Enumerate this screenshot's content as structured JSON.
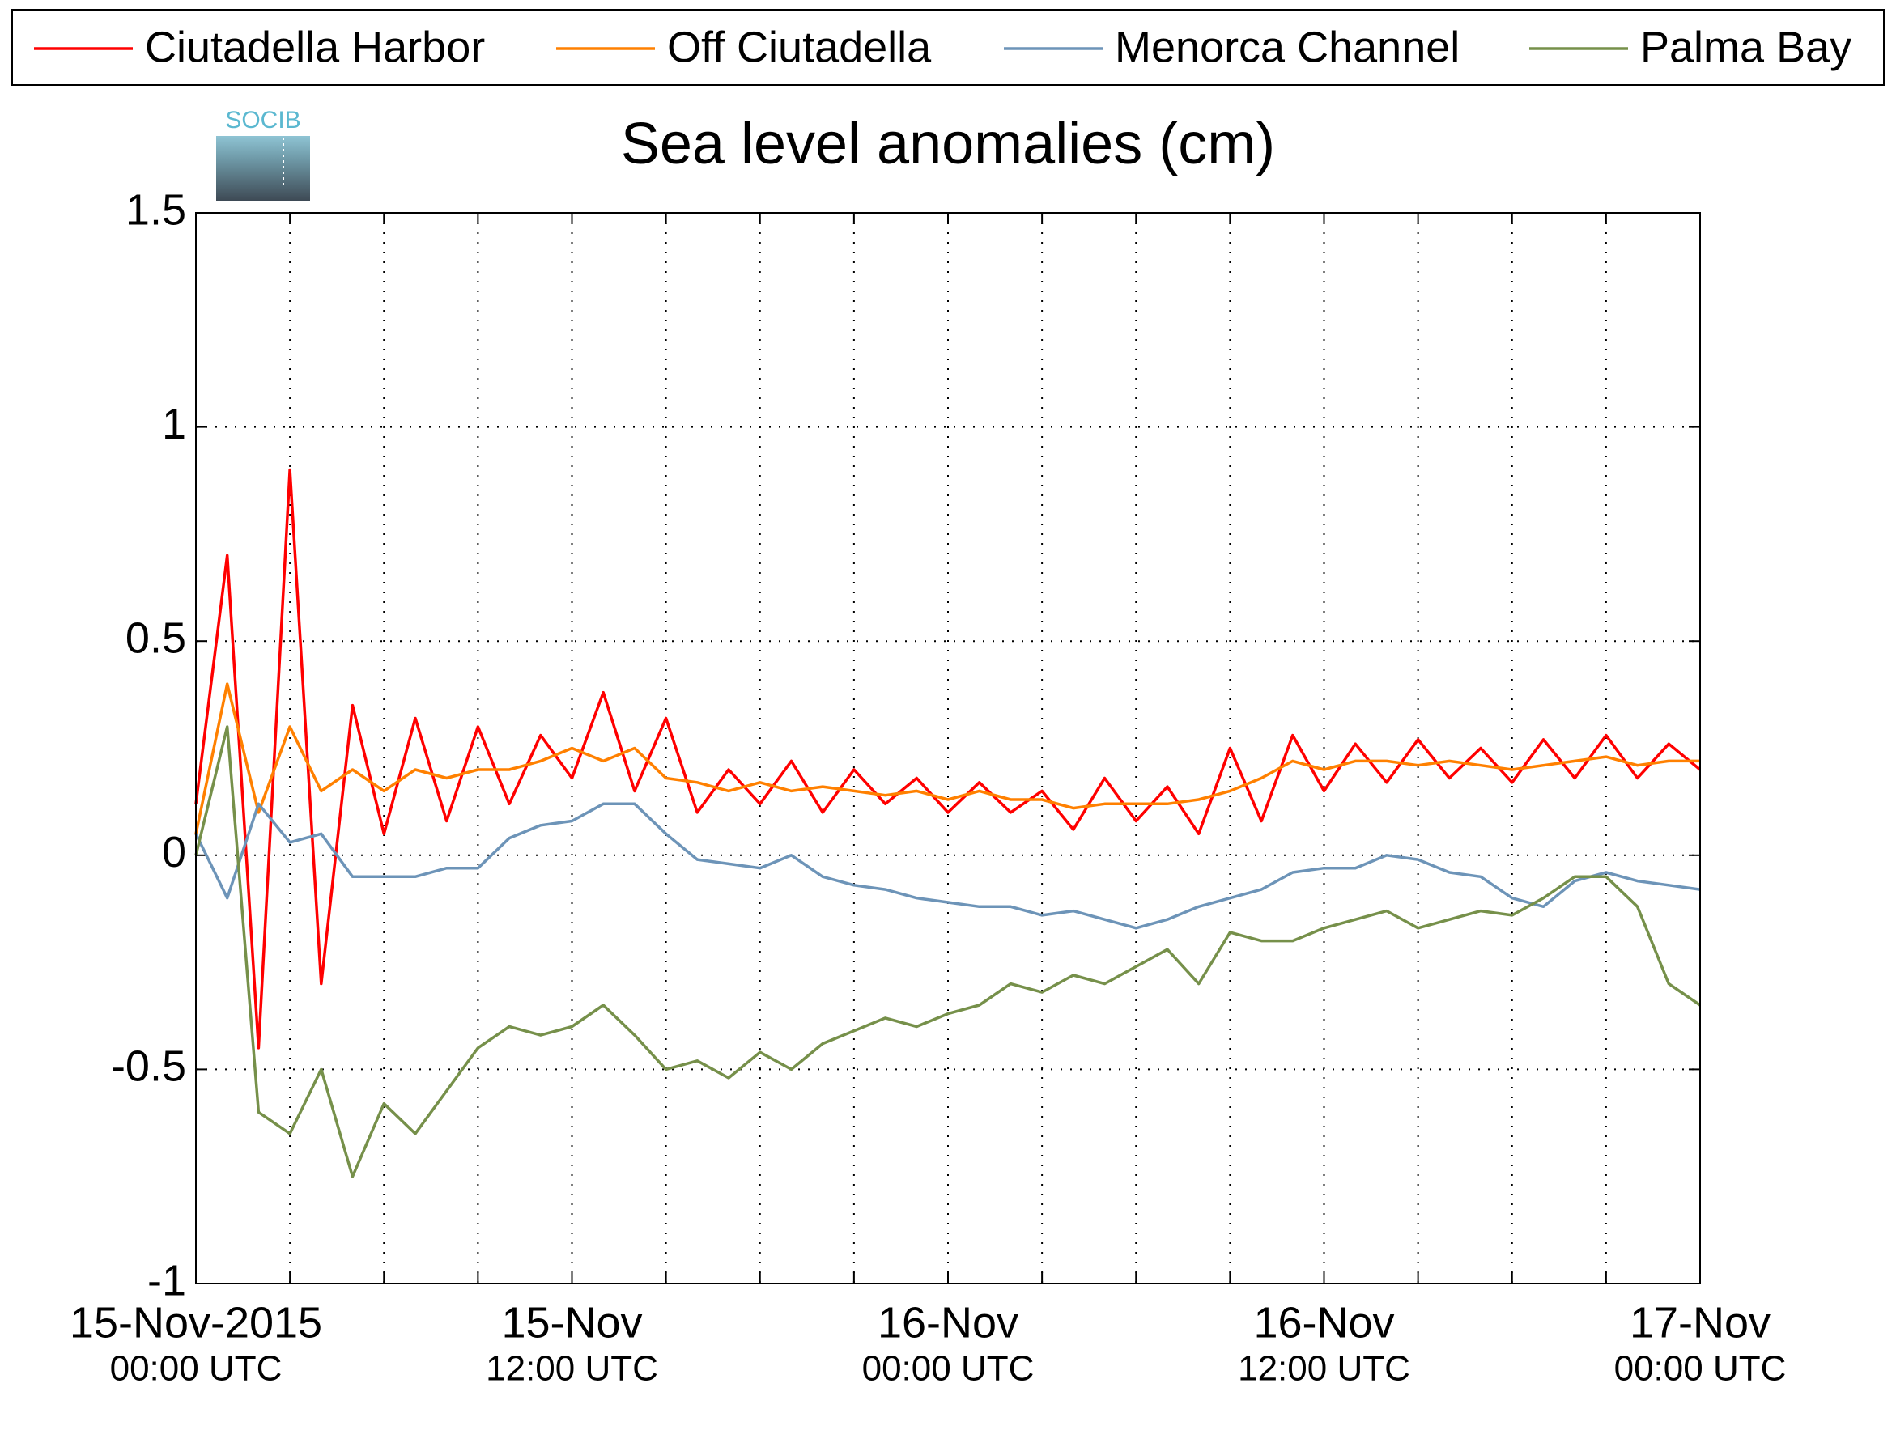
{
  "chart_data": {
    "type": "line",
    "title": "Sea level anomalies (cm)",
    "logo_text": "SOCIB",
    "x": [
      "2015-11-15T00:00",
      "2015-11-15T01:00",
      "2015-11-15T02:00",
      "2015-11-15T03:00",
      "2015-11-15T04:00",
      "2015-11-15T05:00",
      "2015-11-15T06:00",
      "2015-11-15T07:00",
      "2015-11-15T08:00",
      "2015-11-15T09:00",
      "2015-11-15T10:00",
      "2015-11-15T11:00",
      "2015-11-15T12:00",
      "2015-11-15T13:00",
      "2015-11-15T14:00",
      "2015-11-15T15:00",
      "2015-11-15T16:00",
      "2015-11-15T17:00",
      "2015-11-15T18:00",
      "2015-11-15T19:00",
      "2015-11-15T20:00",
      "2015-11-15T21:00",
      "2015-11-15T22:00",
      "2015-11-15T23:00",
      "2015-11-16T00:00",
      "2015-11-16T01:00",
      "2015-11-16T02:00",
      "2015-11-16T03:00",
      "2015-11-16T04:00",
      "2015-11-16T05:00",
      "2015-11-16T06:00",
      "2015-11-16T07:00",
      "2015-11-16T08:00",
      "2015-11-16T09:00",
      "2015-11-16T10:00",
      "2015-11-16T11:00",
      "2015-11-16T12:00",
      "2015-11-16T13:00",
      "2015-11-16T14:00",
      "2015-11-16T15:00",
      "2015-11-16T16:00",
      "2015-11-16T17:00",
      "2015-11-16T18:00",
      "2015-11-16T19:00",
      "2015-11-16T20:00",
      "2015-11-16T21:00",
      "2015-11-16T22:00",
      "2015-11-16T23:00",
      "2015-11-17T00:00"
    ],
    "series": [
      {
        "name": "Ciutadella Harbor",
        "color": "#ff0000",
        "values": [
          0.12,
          0.7,
          -0.45,
          0.9,
          -0.3,
          0.35,
          0.05,
          0.32,
          0.08,
          0.3,
          0.12,
          0.28,
          0.18,
          0.38,
          0.15,
          0.32,
          0.1,
          0.2,
          0.12,
          0.22,
          0.1,
          0.2,
          0.12,
          0.18,
          0.1,
          0.17,
          0.1,
          0.15,
          0.06,
          0.18,
          0.08,
          0.16,
          0.05,
          0.25,
          0.08,
          0.28,
          0.15,
          0.26,
          0.17,
          0.27,
          0.18,
          0.25,
          0.17,
          0.27,
          0.18,
          0.28,
          0.18,
          0.26,
          0.2
        ]
      },
      {
        "name": "Off Ciutadella",
        "color": "#ff8000",
        "values": [
          0.05,
          0.4,
          0.1,
          0.3,
          0.15,
          0.2,
          0.15,
          0.2,
          0.18,
          0.2,
          0.2,
          0.22,
          0.25,
          0.22,
          0.25,
          0.18,
          0.17,
          0.15,
          0.17,
          0.15,
          0.16,
          0.15,
          0.14,
          0.15,
          0.13,
          0.15,
          0.13,
          0.13,
          0.11,
          0.12,
          0.12,
          0.12,
          0.13,
          0.15,
          0.18,
          0.22,
          0.2,
          0.22,
          0.22,
          0.21,
          0.22,
          0.21,
          0.2,
          0.21,
          0.22,
          0.23,
          0.21,
          0.22,
          0.22
        ]
      },
      {
        "name": "Menorca Channel",
        "color": "#6d94b8",
        "values": [
          0.05,
          -0.1,
          0.12,
          0.03,
          0.05,
          -0.05,
          -0.05,
          -0.05,
          -0.03,
          -0.03,
          0.04,
          0.07,
          0.08,
          0.12,
          0.12,
          0.05,
          -0.01,
          -0.02,
          -0.03,
          0.0,
          -0.05,
          -0.07,
          -0.08,
          -0.1,
          -0.11,
          -0.12,
          -0.12,
          -0.14,
          -0.13,
          -0.15,
          -0.17,
          -0.15,
          -0.12,
          -0.1,
          -0.08,
          -0.04,
          -0.03,
          -0.03,
          0.0,
          -0.01,
          -0.04,
          -0.05,
          -0.1,
          -0.12,
          -0.06,
          -0.04,
          -0.06,
          -0.07,
          -0.08
        ]
      },
      {
        "name": "Palma Bay",
        "color": "#76904a",
        "values": [
          0.0,
          0.3,
          -0.6,
          -0.65,
          -0.5,
          -0.75,
          -0.58,
          -0.65,
          -0.55,
          -0.45,
          -0.4,
          -0.42,
          -0.4,
          -0.35,
          -0.42,
          -0.5,
          -0.48,
          -0.52,
          -0.46,
          -0.5,
          -0.44,
          -0.41,
          -0.38,
          -0.4,
          -0.37,
          -0.35,
          -0.3,
          -0.32,
          -0.28,
          -0.3,
          -0.26,
          -0.22,
          -0.3,
          -0.18,
          -0.2,
          -0.2,
          -0.17,
          -0.15,
          -0.13,
          -0.17,
          -0.15,
          -0.13,
          -0.14,
          -0.1,
          -0.05,
          -0.05,
          -0.12,
          -0.3,
          -0.35
        ]
      }
    ],
    "xlim": [
      "2015-11-15T00:00",
      "2015-11-17T00:00"
    ],
    "xticks": [
      {
        "value": "2015-11-15T00:00",
        "label": "15-Nov-2015",
        "time": "00:00 UTC"
      },
      {
        "value": "2015-11-15T03:00"
      },
      {
        "value": "2015-11-15T06:00"
      },
      {
        "value": "2015-11-15T09:00"
      },
      {
        "value": "2015-11-15T12:00",
        "label": "15-Nov",
        "time": "12:00 UTC"
      },
      {
        "value": "2015-11-15T15:00"
      },
      {
        "value": "2015-11-15T18:00"
      },
      {
        "value": "2015-11-15T21:00"
      },
      {
        "value": "2015-11-16T00:00",
        "label": "16-Nov",
        "time": "00:00 UTC"
      },
      {
        "value": "2015-11-16T03:00"
      },
      {
        "value": "2015-11-16T06:00"
      },
      {
        "value": "2015-11-16T09:00"
      },
      {
        "value": "2015-11-16T12:00",
        "label": "16-Nov",
        "time": "12:00 UTC"
      },
      {
        "value": "2015-11-16T15:00"
      },
      {
        "value": "2015-11-16T18:00"
      },
      {
        "value": "2015-11-16T21:00"
      },
      {
        "value": "2015-11-17T00:00",
        "label": "17-Nov",
        "time": "00:00 UTC"
      }
    ],
    "ylim": [
      -1,
      1.5
    ],
    "yticks": [
      -1,
      -0.5,
      0,
      0.5,
      1,
      1.5
    ],
    "grid": true,
    "legend": "top"
  }
}
